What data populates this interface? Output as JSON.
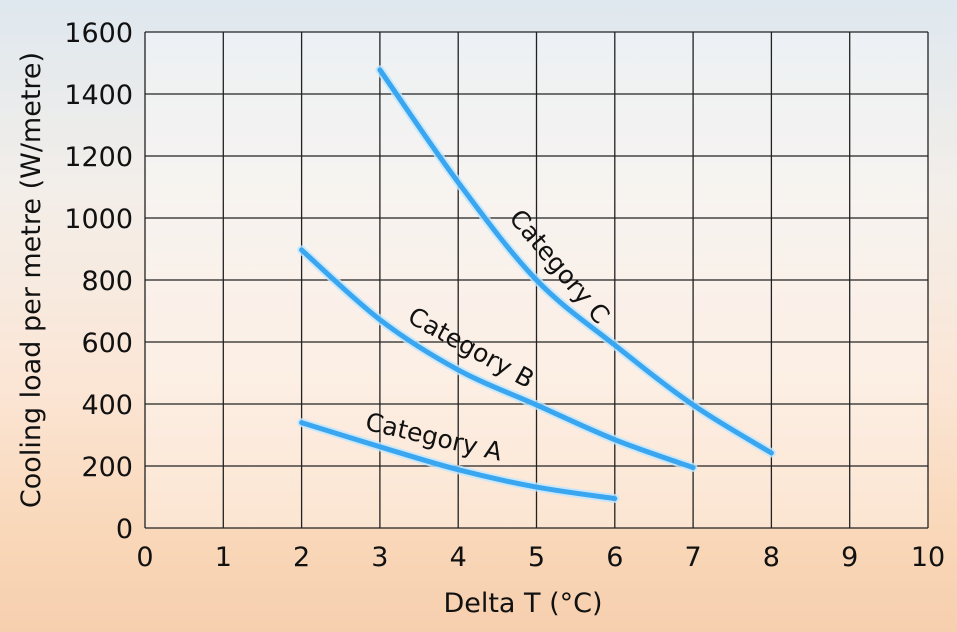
{
  "chart_data": {
    "type": "line",
    "title": "",
    "xlabel": "Delta T (°C)",
    "ylabel": "Cooling load per metre (W/metre)",
    "xlim": [
      0,
      10
    ],
    "ylim": [
      0,
      1600
    ],
    "xticks": [
      0,
      1,
      2,
      3,
      4,
      5,
      6,
      7,
      8,
      9,
      10
    ],
    "yticks": [
      0,
      200,
      400,
      600,
      800,
      1000,
      1200,
      1400,
      1600
    ],
    "grid": true,
    "line_color": "#3aa6f0",
    "series": [
      {
        "name": "Category A",
        "x": [
          2,
          3,
          4,
          5,
          6
        ],
        "y": [
          340,
          262,
          188,
          132,
          95
        ]
      },
      {
        "name": "Category B",
        "x": [
          2,
          3,
          4,
          5,
          6,
          7
        ],
        "y": [
          897,
          672,
          510,
          397,
          285,
          195
        ]
      },
      {
        "name": "Category C",
        "x": [
          3,
          4,
          5,
          6,
          7,
          8
        ],
        "y": [
          1478,
          1115,
          800,
          590,
          397,
          242
        ]
      }
    ]
  }
}
